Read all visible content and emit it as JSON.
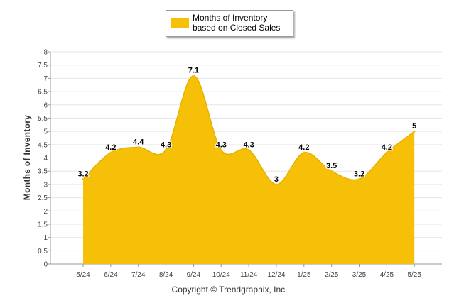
{
  "chart_data": {
    "type": "area",
    "categories": [
      "5/24",
      "6/24",
      "7/24",
      "8/24",
      "9/24",
      "10/24",
      "11/24",
      "12/24",
      "1/25",
      "2/25",
      "3/25",
      "4/25",
      "5/25"
    ],
    "series": [
      {
        "name": "Months of Inventory based on Closed Sales",
        "values": [
          3.2,
          4.2,
          4.4,
          4.3,
          7.1,
          4.3,
          4.3,
          3,
          4.2,
          3.5,
          3.2,
          4.2,
          5
        ]
      }
    ],
    "data_labels": [
      "3.2",
      "4.2",
      "4.4",
      "4.3",
      "7.1",
      "4.3",
      "4.3",
      "3",
      "4.2",
      "3.5",
      "3.2",
      "4.2",
      "5"
    ],
    "yticks": [
      "0",
      "0.5",
      "1",
      "1.5",
      "2",
      "2.5",
      "3",
      "3.5",
      "4",
      "4.5",
      "5",
      "5.5",
      "6",
      "6.5",
      "7",
      "7.5",
      "8"
    ],
    "ylim": [
      0,
      8
    ],
    "ylabel": "Months of Inventory",
    "xlabel": "",
    "legend_position": "top",
    "grid": true,
    "color": "#f7c008"
  },
  "legend": {
    "label": "Months of Inventory based on Closed Sales"
  },
  "footer": {
    "copyright": "Copyright © Trendgraphix, Inc."
  }
}
